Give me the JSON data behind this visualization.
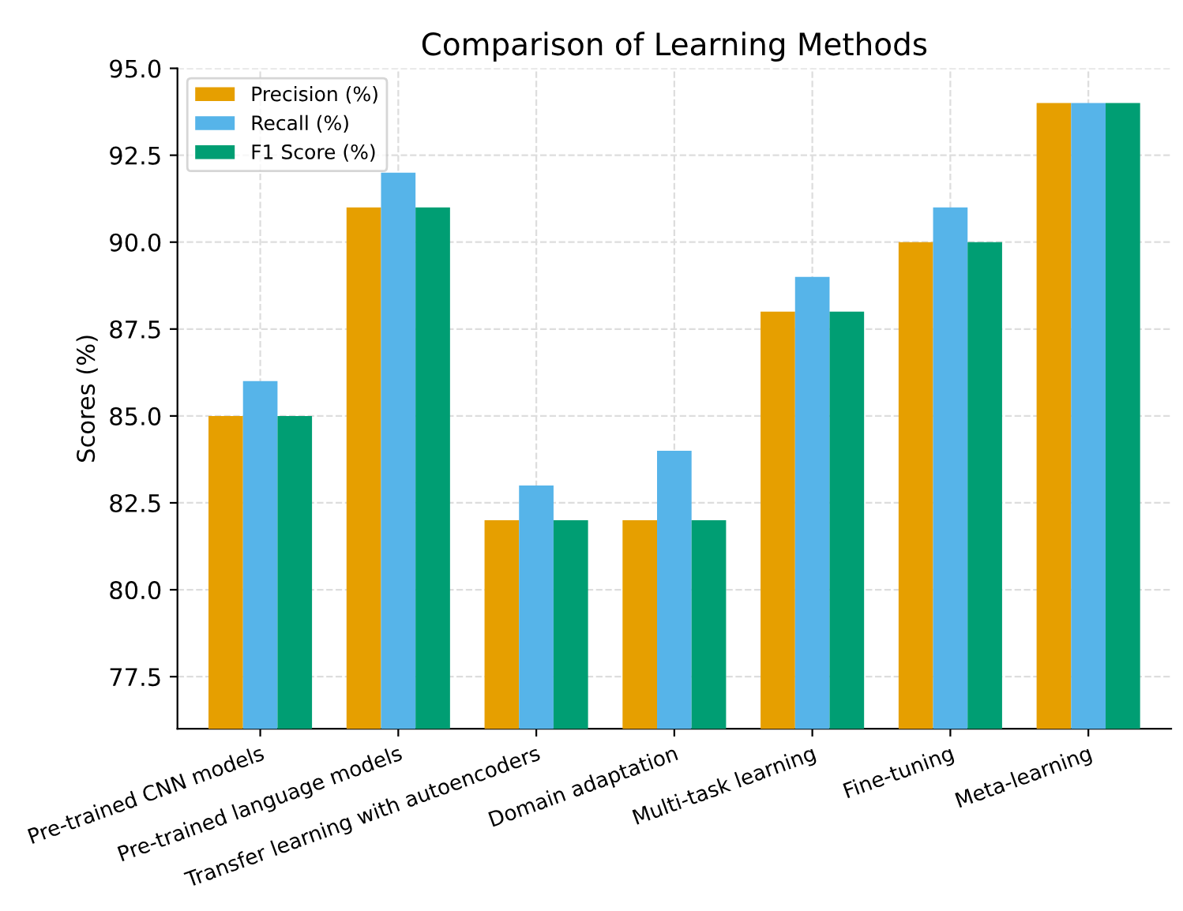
{
  "chart_data": {
    "type": "bar",
    "title": "Comparison of Learning Methods",
    "ylabel": "Scores (%)",
    "categories": [
      "Pre-trained CNN models",
      "Pre-trained language models",
      "Transfer learning with autoencoders",
      "Domain adaptation",
      "Multi-task learning",
      "Fine-tuning",
      "Meta-learning"
    ],
    "series": [
      {
        "name": "Precision (%)",
        "color": "#e69f00",
        "values": [
          85,
          91,
          82,
          82,
          88,
          90,
          94
        ]
      },
      {
        "name": "Recall (%)",
        "color": "#56b4e9",
        "values": [
          86,
          92,
          83,
          84,
          89,
          91,
          94
        ]
      },
      {
        "name": "F1 Score (%)",
        "color": "#009e73",
        "values": [
          85,
          91,
          82,
          82,
          88,
          90,
          94
        ]
      }
    ],
    "ylim": [
      76,
      95
    ],
    "yticks": [
      {
        "value": 77.5,
        "label": "77.5"
      },
      {
        "value": 80,
        "label": "80.0"
      },
      {
        "value": 82.5,
        "label": "82.5"
      },
      {
        "value": 85,
        "label": "85.0"
      },
      {
        "value": 87.5,
        "label": "87.5"
      },
      {
        "value": 90,
        "label": "90.0"
      },
      {
        "value": 92.5,
        "label": "92.5"
      },
      {
        "value": 95,
        "label": "95.0"
      }
    ],
    "grid": true,
    "legend": "top left"
  }
}
